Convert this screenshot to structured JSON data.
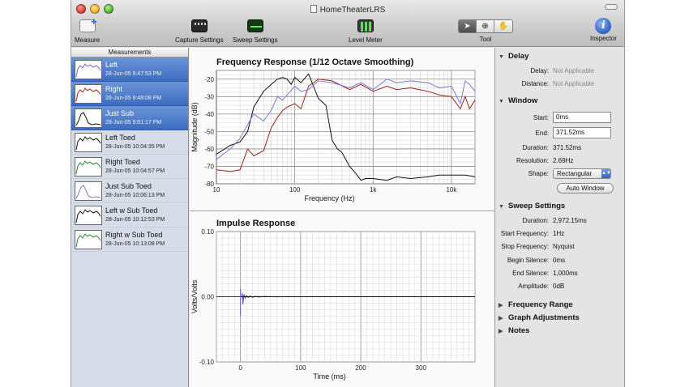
{
  "window": {
    "title": "HomeTheaterLRS"
  },
  "toolbar": {
    "measure_label": "Measure",
    "capture_label": "Capture Settings",
    "sweep_label": "Sweep Settings",
    "level_label": "Level Meter",
    "tool_label": "Tool",
    "inspector_label": "Inspector",
    "tools": [
      {
        "icon": "arrow-pointer-icon",
        "glyph": "➤",
        "active": true
      },
      {
        "icon": "zoom-icon",
        "glyph": "⊕",
        "active": false
      },
      {
        "icon": "hand-icon",
        "glyph": "✋",
        "active": false
      }
    ]
  },
  "sidebar": {
    "header": "Measurements",
    "items": [
      {
        "name": "Left",
        "date": "28-Jun-05 9:47:53 PM",
        "selected": true,
        "color": "#6c6cd8"
      },
      {
        "name": "Right",
        "date": "28-Jun-05 9:48:08 PM",
        "selected": true,
        "color": "#a0201e"
      },
      {
        "name": "Just Sub",
        "date": "28-Jun-05 9:51:17 PM",
        "selected": true,
        "color": "#111111"
      },
      {
        "name": "Left Toed",
        "date": "28-Jun-05 10:04:35 PM",
        "selected": false,
        "color": "#111111"
      },
      {
        "name": "Right Toed",
        "date": "28-Jun-05 10:04:57 PM",
        "selected": false,
        "color": "#2c8a2c"
      },
      {
        "name": "Just Sub Toed",
        "date": "28-Jun-05 10:06:13 PM",
        "selected": false,
        "color": "#7a7ad8"
      },
      {
        "name": "Left w Sub Toed",
        "date": "28-Jun-05 10:12:53 PM",
        "selected": false,
        "color": "#111111"
      },
      {
        "name": "Right w Sub Toed",
        "date": "28-Jun-05 10:13:08 PM",
        "selected": false,
        "color": "#2c8a2c"
      }
    ]
  },
  "chart_data": [
    {
      "type": "line",
      "title": "Frequency Response (1/12 Octave Smoothing)",
      "xlabel": "Frequency (Hz)",
      "ylabel": "Magnitude (dB)",
      "x_scale": "log",
      "xlim": [
        10,
        20000
      ],
      "ylim": [
        -80,
        -15
      ],
      "x_ticks": [
        "10",
        "100",
        "1k",
        "10k"
      ],
      "y_ticks": [
        "-20",
        "-30",
        "-40",
        "-50",
        "-60",
        "-70",
        "-80"
      ],
      "grid": true,
      "series": [
        {
          "color": "#111111",
          "x": [
            10,
            15,
            20,
            25,
            30,
            40,
            50,
            60,
            70,
            80,
            90,
            100,
            120,
            150,
            200,
            250,
            300,
            350,
            400,
            500,
            600,
            700,
            800,
            1000,
            1500,
            2000,
            3000,
            5000,
            7000,
            10000,
            15000,
            20000
          ],
          "y": [
            -63,
            -58,
            -56,
            -50,
            -36,
            -27,
            -23,
            -20,
            -19,
            -20,
            -23,
            -19,
            -22,
            -17,
            -31,
            -35,
            -55,
            -60,
            -62,
            -70,
            -74,
            -78,
            -77,
            -77,
            -78,
            -76,
            -77,
            -76,
            -75,
            -75,
            -75,
            -76
          ]
        },
        {
          "color": "#a0201e",
          "x": [
            10,
            15,
            20,
            25,
            30,
            40,
            50,
            60,
            70,
            80,
            100,
            120,
            150,
            200,
            300,
            500,
            700,
            1000,
            1500,
            2000,
            3000,
            5000,
            7000,
            10000,
            13000,
            15000,
            17000,
            20000
          ],
          "y": [
            -72,
            -73,
            -72,
            -60,
            -64,
            -61,
            -48,
            -42,
            -38,
            -36,
            -34,
            -37,
            -24,
            -20,
            -21,
            -26,
            -23,
            -27,
            -24,
            -26,
            -25,
            -27,
            -29,
            -30,
            -37,
            -30,
            -37,
            -32
          ]
        },
        {
          "color": "#7a7ad8",
          "x": [
            10,
            15,
            20,
            25,
            30,
            40,
            50,
            60,
            70,
            80,
            100,
            120,
            150,
            200,
            300,
            500,
            700,
            1000,
            1500,
            2000,
            3000,
            5000,
            7000,
            10000,
            13000,
            15000,
            17000,
            20000
          ],
          "y": [
            -66,
            -60,
            -54,
            -46,
            -40,
            -44,
            -38,
            -30,
            -32,
            -29,
            -24,
            -27,
            -26,
            -21,
            -22,
            -25,
            -22,
            -26,
            -20,
            -22,
            -21,
            -22,
            -25,
            -24,
            -34,
            -21,
            -23,
            -27
          ]
        }
      ]
    },
    {
      "type": "line",
      "title": "Impulse Response",
      "xlabel": "Time (ms)",
      "ylabel": "Volts/Volts",
      "xlim": [
        -40,
        390
      ],
      "ylim": [
        -0.1,
        0.1
      ],
      "x_ticks": [
        "0",
        "100",
        "200",
        "300"
      ],
      "y_ticks": [
        "0.10",
        "0.00",
        "-0.10"
      ],
      "grid": true,
      "series": [
        {
          "color": "#a0201e",
          "x": [
            0,
            2,
            3,
            4,
            6,
            8,
            10,
            13,
            16,
            20,
            25,
            30,
            40,
            60,
            80,
            100,
            390
          ],
          "y": [
            0,
            0,
            0.004,
            -0.004,
            0.003,
            -0.002,
            0.002,
            -0.0015,
            0.0012,
            -0.001,
            0.0008,
            -0.0005,
            0.0003,
            -0.0002,
            0.0001,
            0,
            0
          ]
        },
        {
          "color": "#5a5ae0",
          "x": [
            0,
            2,
            3,
            4,
            5,
            6,
            8,
            10,
            13,
            16,
            20,
            30,
            60,
            390
          ],
          "y": [
            0,
            0,
            0.006,
            -0.012,
            -0.004,
            0.003,
            -0.002,
            0.0015,
            -0.001,
            0.0008,
            -0.0005,
            0.0003,
            0,
            0
          ]
        },
        {
          "color": "#111111",
          "x": [
            0,
            3,
            390
          ],
          "y": [
            0,
            0,
            0
          ]
        }
      ]
    }
  ],
  "inspector": {
    "delay": {
      "title": "Delay",
      "delay_label": "Delay:",
      "delay_value": "Not Applicable",
      "distance_label": "Distance:",
      "distance_value": "Not Applicable"
    },
    "window": {
      "title": "Window",
      "start_label": "Start:",
      "start_value": "0ms",
      "end_label": "End:",
      "end_value": "371.52ms",
      "duration_label": "Duration:",
      "duration_value": "371.52ms",
      "resolution_label": "Resolution:",
      "resolution_value": "2.69Hz",
      "shape_label": "Shape:",
      "shape_value": "Rectangular",
      "auto_button": "Auto Window"
    },
    "sweep": {
      "title": "Sweep Settings",
      "duration_label": "Duration:",
      "duration_value": "2,972.15ms",
      "start_freq_label": "Start Frequency:",
      "start_freq_value": "1Hz",
      "stop_freq_label": "Stop Frequency:",
      "stop_freq_value": "Nyquist",
      "begin_silence_label": "Begin Silence:",
      "begin_silence_value": "0ms",
      "end_silence_label": "End Silence:",
      "end_silence_value": "1,000ms",
      "amplitude_label": "Amplitude:",
      "amplitude_value": "0dB"
    },
    "frequency_range": "Frequency Range",
    "graph_adjustments": "Graph Adjustments",
    "notes": "Notes"
  }
}
